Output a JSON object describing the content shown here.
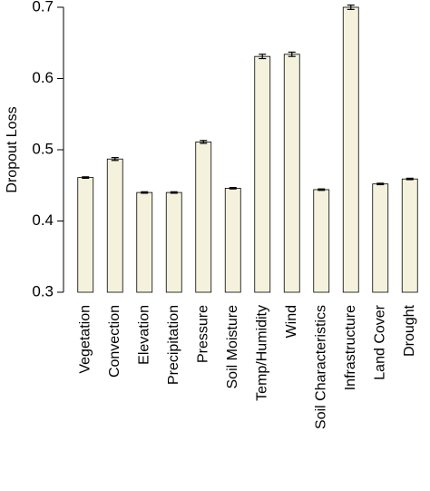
{
  "chart_data": {
    "type": "bar",
    "y_label": "Dropout Loss",
    "categories": [
      "Vegetation",
      "Convection",
      "Elevation",
      "Precipitation",
      "Pressure",
      "Soil Moisture",
      "Temp/Humidity",
      "Wind",
      "Soil Characteristics",
      "Infrastructure",
      "Land Cover",
      "Drought"
    ],
    "values": [
      0.461,
      0.487,
      0.44,
      0.44,
      0.511,
      0.446,
      0.631,
      0.634,
      0.444,
      0.7,
      0.452,
      0.459
    ],
    "errors": [
      0.001,
      0.002,
      0.001,
      0.001,
      0.002,
      0.001,
      0.003,
      0.003,
      0.001,
      0.003,
      0.001,
      0.001
    ],
    "color": "#f4f2dc",
    "ylim": [
      0.3,
      0.7
    ],
    "yticks": [
      0.3,
      0.4,
      0.5,
      0.6,
      0.7
    ]
  }
}
